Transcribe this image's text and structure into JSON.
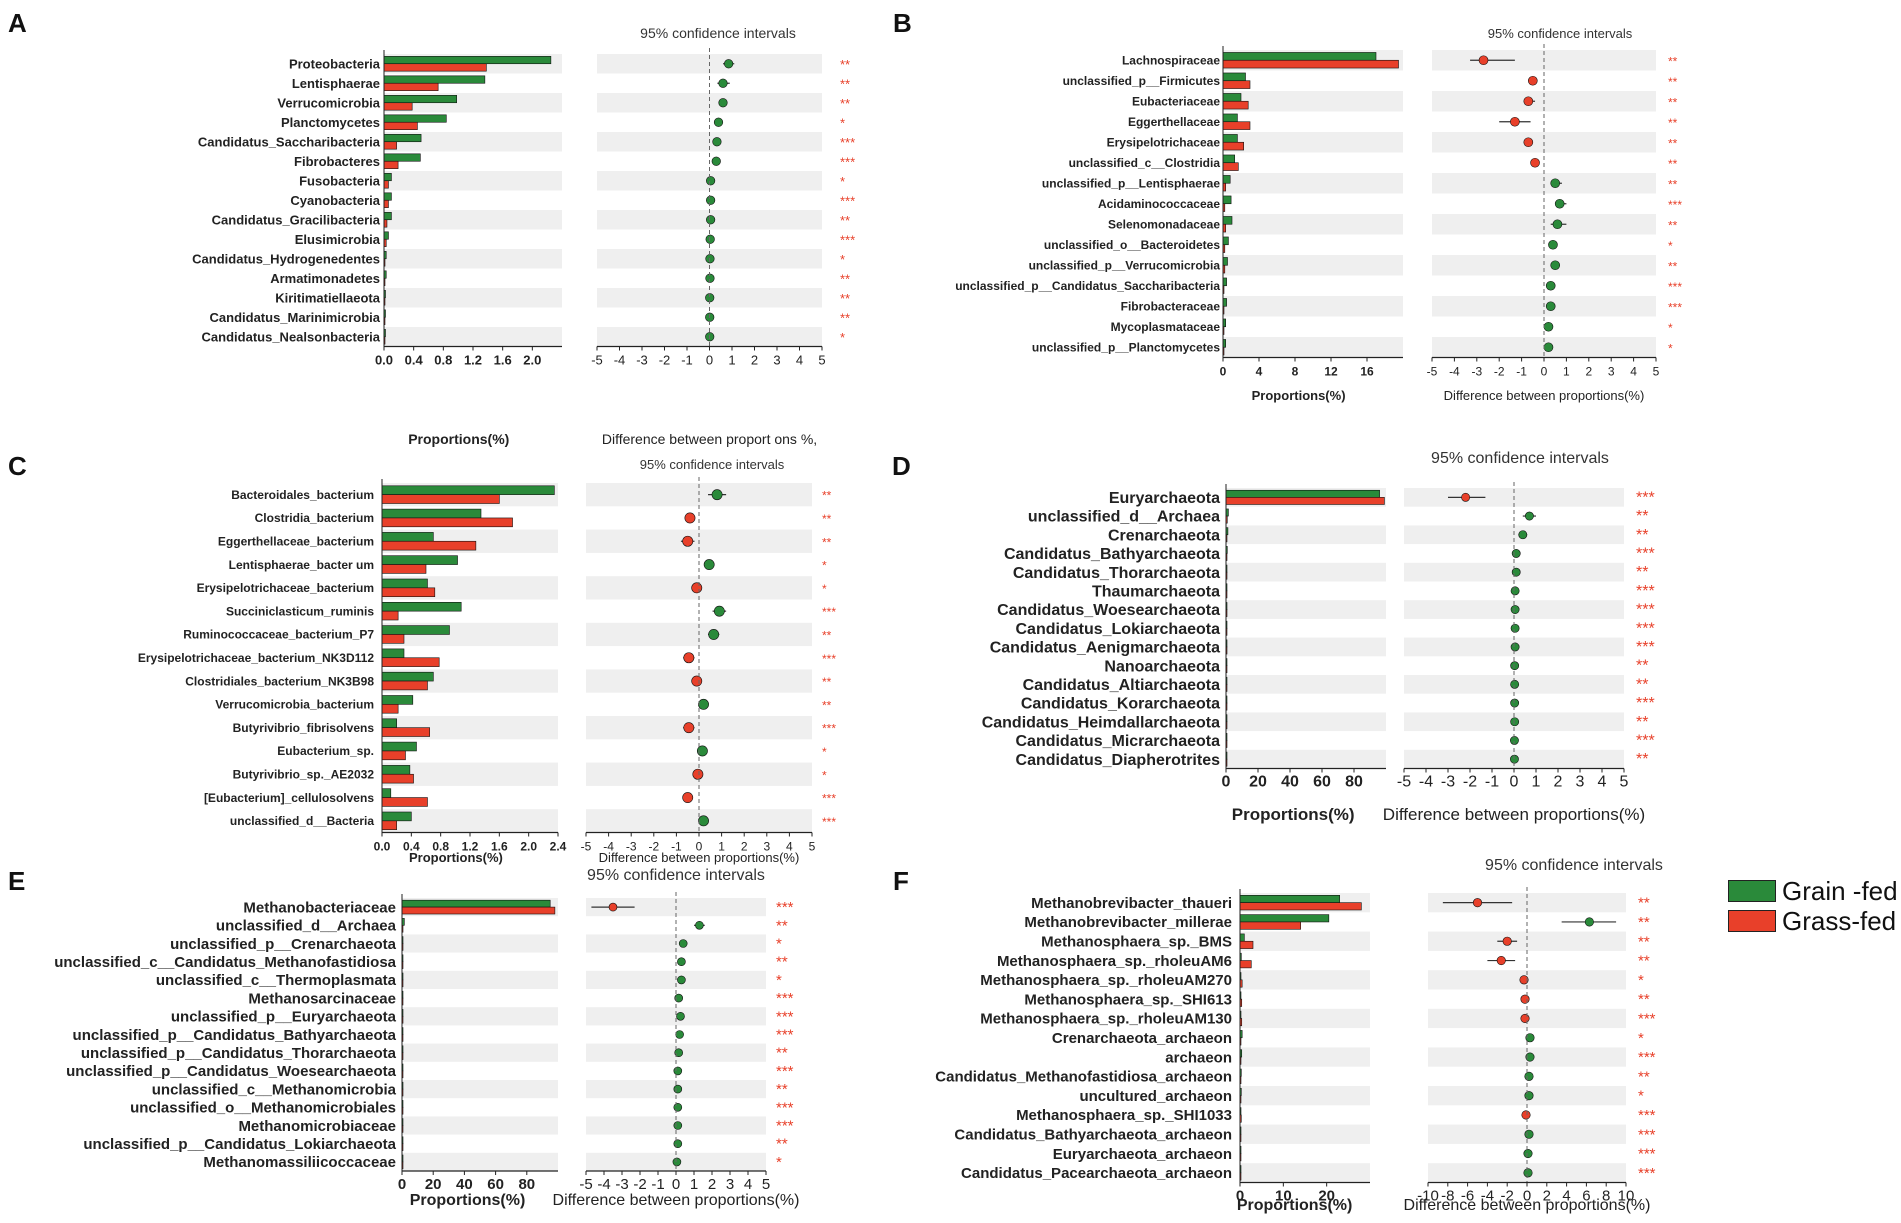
{
  "legend": {
    "grain_label": "Grain -fed",
    "grass_label": "Grass-fed",
    "grain_color": "#2a8a3a",
    "grass_color": "#e8402a"
  },
  "colors": {
    "sig": "#e8402a",
    "stripe": "#efefef",
    "axis": "#222222",
    "grain": "#2a8a3a",
    "grass": "#e8402a"
  },
  "chart_data": [
    {
      "panel": "A",
      "type": "bar",
      "ci_title": "95% confidence intervals",
      "xlabel": "Proportions(%)",
      "ci_xlabel": "Difference between proport ons %,",
      "xlim": [
        0,
        2.4
      ],
      "xticks": [
        "0.0",
        "0.4",
        "0.8",
        "1.2",
        "1.6",
        "2.0"
      ],
      "ci_xlim": [
        -5,
        5
      ],
      "ci_xticks": [
        "-5",
        "-4",
        "-3",
        "-2",
        "-1",
        "0",
        "1",
        "2",
        "3",
        "4",
        "5"
      ],
      "categories": [
        "Proteobacteria",
        "Lentisphaerae",
        "Verrucomicrobia",
        "Planctomycetes",
        "Candidatus_Saccharibacteria",
        "Fibrobacteres",
        "Fusobacteria",
        "Cyanobacteria",
        "Candidatus_Gracilibacteria",
        "Elusimicrobia",
        "Candidatus_Hydrogenedentes",
        "Armatimonadetes",
        "Kiritimatiellaeota",
        "Candidatus_Marinimicrobia",
        "Candidatus_Nealsonbacteria"
      ],
      "series": [
        {
          "name": "Grain -fed",
          "values": [
            2.25,
            1.36,
            0.98,
            0.84,
            0.5,
            0.49,
            0.1,
            0.1,
            0.1,
            0.06,
            0.03,
            0.03,
            0.02,
            0.02,
            0.02
          ]
        },
        {
          "name": "Grass-fed",
          "values": [
            1.38,
            0.73,
            0.38,
            0.45,
            0.17,
            0.19,
            0.06,
            0.06,
            0.04,
            0.03,
            0.01,
            0.01,
            0.01,
            0.01,
            0.01
          ]
        }
      ],
      "diff": [
        0.85,
        0.6,
        0.6,
        0.4,
        0.33,
        0.3,
        0.05,
        0.05,
        0.05,
        0.03,
        0.02,
        0.02,
        0.01,
        0.01,
        0.01
      ],
      "ci_low": [
        0.6,
        0.35,
        0.45,
        0.25,
        0.2,
        0.2,
        0.0,
        0.0,
        0.0,
        0.0,
        -0.02,
        -0.02,
        -0.02,
        -0.02,
        -0.02
      ],
      "ci_high": [
        1.1,
        0.9,
        0.75,
        0.55,
        0.45,
        0.4,
        0.1,
        0.1,
        0.1,
        0.06,
        0.05,
        0.05,
        0.04,
        0.04,
        0.04
      ],
      "sig": [
        "**",
        "**",
        "**",
        "*",
        "***",
        "***",
        "*",
        "***",
        "**",
        "***",
        "*",
        "**",
        "**",
        "**",
        "*"
      ],
      "favor": [
        "grain",
        "grain",
        "grain",
        "grain",
        "grain",
        "grain",
        "grain",
        "grain",
        "grain",
        "grain",
        "grain",
        "grain",
        "grain",
        "grain",
        "grain"
      ]
    },
    {
      "panel": "B",
      "type": "bar",
      "ci_title": "95% confidence intervals",
      "xlabel": "Proportions(%)",
      "ci_xlabel": "Difference between proportions(%)",
      "xlim": [
        0,
        20
      ],
      "xticks": [
        "0",
        "4",
        "8",
        "12",
        "16"
      ],
      "ci_xlim": [
        -5,
        5
      ],
      "ci_xticks": [
        "-5",
        "-4",
        "-3",
        "-2",
        "-1",
        "0",
        "1",
        "2",
        "3",
        "4",
        "5"
      ],
      "categories": [
        "Lachnospiraceae",
        "unclassified_p__Firmicutes",
        "Eubacteriaceae",
        "Eggerthellaceae",
        "Erysipelotrichaceae",
        "unclassified_c__Clostridia",
        "unclassified_p__Lentisphaerae",
        "Acidaminococcaceae",
        "Selenomonadaceae",
        "unclassified_o__Bacteroidetes",
        "unclassified_p__Verrucomicrobia",
        "unclassified_p__Candidatus_Saccharibacteria",
        "Fibrobacteraceae",
        "Mycoplasmataceae",
        "unclassified_p__Planctomycetes"
      ],
      "series": [
        {
          "name": "Grain -fed",
          "values": [
            17.0,
            2.5,
            2.0,
            1.6,
            1.6,
            1.3,
            0.8,
            0.9,
            1.0,
            0.6,
            0.5,
            0.4,
            0.4,
            0.3,
            0.3
          ]
        },
        {
          "name": "Grass-fed",
          "values": [
            19.5,
            3.0,
            2.8,
            3.0,
            2.3,
            1.7,
            0.3,
            0.2,
            0.3,
            0.2,
            0.2,
            0.1,
            0.1,
            0.1,
            0.1
          ]
        }
      ],
      "diff": [
        -2.7,
        -0.5,
        -0.7,
        -1.3,
        -0.7,
        -0.4,
        0.5,
        0.7,
        0.6,
        0.4,
        0.5,
        0.3,
        0.3,
        0.2,
        0.2
      ],
      "ci_low": [
        -3.3,
        -0.7,
        -0.9,
        -2.0,
        -0.9,
        -0.5,
        0.3,
        0.5,
        0.3,
        0.3,
        0.3,
        0.2,
        0.2,
        0.1,
        0.1
      ],
      "ci_high": [
        -1.3,
        -0.3,
        -0.4,
        -0.6,
        -0.5,
        -0.3,
        0.8,
        1.0,
        1.0,
        0.5,
        0.7,
        0.4,
        0.4,
        0.3,
        0.3
      ],
      "sig": [
        "**",
        "**",
        "**",
        "**",
        "**",
        "**",
        "**",
        "***",
        "**",
        "*",
        "**",
        "***",
        "***",
        "*",
        "*"
      ],
      "favor": [
        "grass",
        "grass",
        "grass",
        "grass",
        "grass",
        "grass",
        "grain",
        "grain",
        "grain",
        "grain",
        "grain",
        "grain",
        "grain",
        "grain",
        "grain"
      ]
    },
    {
      "panel": "C",
      "type": "bar",
      "ci_title": "95% confidence intervals",
      "xlabel": "Proportions(%)",
      "ci_xlabel": "Difference between proportions(%)",
      "xlim": [
        0,
        2.4
      ],
      "xticks": [
        "0.0",
        "0.4",
        "0.8",
        "1.2",
        "1.6",
        "2.0",
        "2.4"
      ],
      "ci_xlim": [
        -5,
        5
      ],
      "ci_xticks": [
        "-5",
        "-4",
        "-3",
        "-2",
        "-1",
        "0",
        "1",
        "2",
        "3",
        "4",
        "5"
      ],
      "categories": [
        "Bacteroidales_bacterium",
        "Clostridia_bacterium",
        "Eggerthellaceae_bacterium",
        "Lentisphaerae_bacter um",
        "Erysipelotrichaceae_bacterium",
        "Succiniclasticum_ruminis",
        "Ruminococcaceae_bacterium_P7",
        "Erysipelotrichaceae_bacterium_NK3D112",
        "Clostridiales_bacterium_NK3B98",
        "Verrucomicrobia_bacterium",
        "Butyrivibrio_fibrisolvens",
        "Eubacterium_sp.",
        "Butyrivibrio_sp._AE2032",
        "[Eubacterium]_cellulosolvens",
        "unclassified_d__Bacteria"
      ],
      "series": [
        {
          "name": "Grain -fed",
          "values": [
            2.35,
            1.35,
            0.7,
            1.03,
            0.62,
            1.08,
            0.92,
            0.3,
            0.7,
            0.42,
            0.2,
            0.47,
            0.38,
            0.12,
            0.4
          ]
        },
        {
          "name": "Grass-fed",
          "values": [
            1.6,
            1.78,
            1.28,
            0.6,
            0.72,
            0.22,
            0.3,
            0.78,
            0.62,
            0.22,
            0.65,
            0.32,
            0.43,
            0.62,
            0.2
          ]
        }
      ],
      "diff": [
        0.8,
        -0.4,
        -0.5,
        0.45,
        -0.1,
        0.9,
        0.65,
        -0.45,
        -0.1,
        0.2,
        -0.45,
        0.15,
        -0.05,
        -0.5,
        0.2
      ],
      "ci_low": [
        0.4,
        -0.6,
        -0.8,
        0.25,
        -0.3,
        0.6,
        0.4,
        -0.7,
        -0.3,
        0.1,
        -0.7,
        0.05,
        -0.2,
        -0.7,
        0.05
      ],
      "ci_high": [
        1.2,
        -0.2,
        -0.2,
        0.65,
        0.1,
        1.2,
        0.9,
        -0.2,
        0.1,
        0.3,
        -0.2,
        0.25,
        0.1,
        -0.3,
        0.35
      ],
      "sig": [
        "**",
        "**",
        "**",
        "*",
        "*",
        "***",
        "**",
        "***",
        "**",
        "**",
        "***",
        "*",
        "*",
        "***",
        "***"
      ],
      "favor": [
        "grain",
        "grass",
        "grass",
        "grain",
        "grass",
        "grain",
        "grain",
        "grass",
        "grass",
        "grain",
        "grass",
        "grain",
        "grass",
        "grass",
        "grain"
      ]
    },
    {
      "panel": "D",
      "type": "bar",
      "ci_title": "95% confidence intervals",
      "xlabel": "Proportions(%)",
      "ci_xlabel": "Difference between proportions(%)",
      "xlim": [
        0,
        100
      ],
      "xticks": [
        "0",
        "20",
        "40",
        "60",
        "80"
      ],
      "ci_xlim": [
        -5,
        5
      ],
      "ci_xticks": [
        "-5",
        "-4",
        "-3",
        "-2",
        "-1",
        "0",
        "1",
        "2",
        "3",
        "4",
        "5"
      ],
      "categories": [
        "Euryarchaeota",
        "unclassified_d__Archaea",
        "Crenarchaeota",
        "Candidatus_Bathyarchaeota",
        "Candidatus_Thorarchaeota",
        "Thaumarchaeota",
        "Candidatus_Woesearchaeota",
        "Candidatus_Lokiarchaeota",
        "Candidatus_Aenigmarchaeota",
        "Nanoarchaeota",
        "Candidatus_Altiarchaeota",
        "Candidatus_Korarchaeota",
        "Candidatus_Heimdallarchaeota",
        "Candidatus_Micrarchaeota",
        "Candidatus_Diapherotrites"
      ],
      "series": [
        {
          "name": "Grain -fed",
          "values": [
            96,
            1.5,
            1.2,
            0.8,
            0.6,
            0.5,
            0.4,
            0.4,
            0.3,
            0.3,
            0.3,
            0.2,
            0.2,
            0.2,
            0.2
          ]
        },
        {
          "name": "Grass-fed",
          "values": [
            99,
            0.8,
            0.6,
            0.4,
            0.3,
            0.3,
            0.2,
            0.2,
            0.2,
            0.2,
            0.1,
            0.1,
            0.1,
            0.1,
            0.1
          ]
        }
      ],
      "diff": [
        -2.2,
        0.7,
        0.4,
        0.1,
        0.1,
        0.05,
        0.05,
        0.05,
        0.05,
        0.03,
        0.03,
        0.03,
        0.03,
        0.02,
        0.02
      ],
      "ci_low": [
        -3.0,
        0.4,
        0.2,
        0.0,
        0.0,
        0.0,
        0.0,
        0.0,
        0.0,
        0.0,
        0.0,
        0.0,
        0.0,
        0.0,
        0.0
      ],
      "ci_high": [
        -1.3,
        1.0,
        0.6,
        0.2,
        0.2,
        0.1,
        0.1,
        0.1,
        0.1,
        0.06,
        0.06,
        0.06,
        0.06,
        0.05,
        0.05
      ],
      "sig": [
        "***",
        "**",
        "**",
        "***",
        "**",
        "***",
        "***",
        "***",
        "***",
        "**",
        "**",
        "***",
        "**",
        "***",
        "**"
      ],
      "favor": [
        "grass",
        "grain",
        "grain",
        "grain",
        "grain",
        "grain",
        "grain",
        "grain",
        "grain",
        "grain",
        "grain",
        "grain",
        "grain",
        "grain",
        "grain"
      ]
    },
    {
      "panel": "E",
      "type": "bar",
      "ci_title": "95% confidence intervals",
      "xlabel": "Proportions(%)",
      "ci_xlabel": "Difference between proportions(%)",
      "xlim": [
        0,
        100
      ],
      "xticks": [
        "0",
        "20",
        "40",
        "60",
        "80"
      ],
      "ci_xlim": [
        -5,
        5
      ],
      "ci_xticks": [
        "-5",
        "-4",
        "-3",
        "-2",
        "-1",
        "0",
        "1",
        "2",
        "3",
        "4",
        "5"
      ],
      "categories": [
        "Methanobacteriaceae",
        "unclassified_d__Archaea",
        "unclassified_p__Crenarchaeota",
        "unclassified_c__Candidatus_Methanofastidiosa",
        "unclassified_c__Thermoplasmata",
        "Methanosarcinaceae",
        "unclassified_p__Euryarchaeota",
        "unclassified_p__Candidatus_Bathyarchaeota",
        "unclassified_p__Candidatus_Thorarchaeota",
        "unclassified_p__Candidatus_Woesearchaeota",
        "unclassified_c__Methanomicrobia",
        "unclassified_o__Methanomicrobiales",
        "Methanomicrobiaceae",
        "unclassified_p__Candidatus_Lokiarchaeota",
        "Methanomassiliicoccaceae"
      ],
      "series": [
        {
          "name": "Grain -fed",
          "values": [
            95,
            1.5,
            0.5,
            0.5,
            0.4,
            0.5,
            0.4,
            0.4,
            0.3,
            0.3,
            0.3,
            0.3,
            0.3,
            0.2,
            0.2
          ]
        },
        {
          "name": "Grass-fed",
          "values": [
            98,
            0.5,
            0.3,
            0.2,
            0.2,
            0.2,
            0.2,
            0.2,
            0.1,
            0.1,
            0.1,
            0.1,
            0.1,
            0.1,
            0.1
          ]
        }
      ],
      "diff": [
        -3.5,
        1.3,
        0.4,
        0.3,
        0.3,
        0.15,
        0.25,
        0.2,
        0.15,
        0.1,
        0.1,
        0.1,
        0.1,
        0.1,
        0.05
      ],
      "ci_low": [
        -4.7,
        1.0,
        0.2,
        0.1,
        0.1,
        0.05,
        0.1,
        0.05,
        0.05,
        0.0,
        0.0,
        0.0,
        0.0,
        0.0,
        0.0
      ],
      "ci_high": [
        -2.3,
        1.6,
        0.6,
        0.5,
        0.5,
        0.3,
        0.4,
        0.35,
        0.25,
        0.2,
        0.2,
        0.2,
        0.2,
        0.2,
        0.1
      ],
      "sig": [
        "***",
        "**",
        "*",
        "**",
        "*",
        "***",
        "***",
        "***",
        "**",
        "***",
        "**",
        "***",
        "***",
        "**",
        "*"
      ],
      "favor": [
        "grass",
        "grain",
        "grain",
        "grain",
        "grain",
        "grain",
        "grain",
        "grain",
        "grain",
        "grain",
        "grain",
        "grain",
        "grain",
        "grain",
        "grain"
      ]
    },
    {
      "panel": "F",
      "type": "bar",
      "ci_title": "95% confidence intervals",
      "xlabel": "Proportions(%)",
      "ci_xlabel": "Difference between proportions(%)",
      "xlim": [
        0,
        30
      ],
      "xticks": [
        "0",
        "10",
        "20"
      ],
      "ci_xlim": [
        -10,
        10
      ],
      "ci_xticks": [
        "-10",
        "-8",
        "-6",
        "-4",
        "-2",
        "0",
        "2",
        "4",
        "6",
        "8",
        "10"
      ],
      "categories": [
        "Methanobrevibacter_thaueri",
        "Methanobrevibacter_millerae",
        "Methanosphaera_sp._BMS",
        "Methanosphaera_sp._rholeuAM6",
        "Methanosphaera_sp._rholeuAM270",
        "Methanosphaera_sp._SHI613",
        "Methanosphaera_sp._rholeuAM130",
        "Crenarchaeota_archaeon",
        "archaeon",
        "Candidatus_Methanofastidiosa_archaeon",
        "uncultured_archaeon",
        "Methanosphaera_sp._SHI1033",
        "Candidatus_Bathyarchaeota_archaeon",
        "Euryarchaeota_archaeon",
        "Candidatus_Pacearchaeota_archaeon"
      ],
      "series": [
        {
          "name": "Grain -fed",
          "values": [
            23,
            20.5,
            1.0,
            0.3,
            0.2,
            0.2,
            0.2,
            0.5,
            0.4,
            0.3,
            0.3,
            0.2,
            0.2,
            0.2,
            0.2
          ]
        },
        {
          "name": "Grass-fed",
          "values": [
            28,
            14,
            3.0,
            2.6,
            0.5,
            0.4,
            0.4,
            0.1,
            0.1,
            0.1,
            0.1,
            0.3,
            0.1,
            0.1,
            0.1
          ]
        }
      ],
      "diff": [
        -5,
        6.3,
        -2.0,
        -2.6,
        -0.3,
        -0.2,
        -0.2,
        0.3,
        0.3,
        0.2,
        0.2,
        -0.1,
        0.2,
        0.1,
        0.1
      ],
      "ci_low": [
        -8.5,
        3.5,
        -3.0,
        -4.0,
        -0.6,
        -0.4,
        -0.4,
        0.1,
        0.1,
        0.0,
        0.0,
        -0.3,
        0.0,
        0.0,
        0.0
      ],
      "ci_high": [
        -1.5,
        9.0,
        -1.0,
        -1.2,
        0.0,
        0.0,
        0.0,
        0.5,
        0.5,
        0.4,
        0.4,
        0.1,
        0.4,
        0.2,
        0.2
      ],
      "sig": [
        "**",
        "**",
        "**",
        "**",
        "*",
        "**",
        "***",
        "*",
        "***",
        "**",
        "*",
        "***",
        "***",
        "***",
        "***"
      ],
      "favor": [
        "grass",
        "grain",
        "grass",
        "grass",
        "grass",
        "grass",
        "grass",
        "grain",
        "grain",
        "grain",
        "grain",
        "grass",
        "grain",
        "grain",
        "grain"
      ]
    }
  ]
}
